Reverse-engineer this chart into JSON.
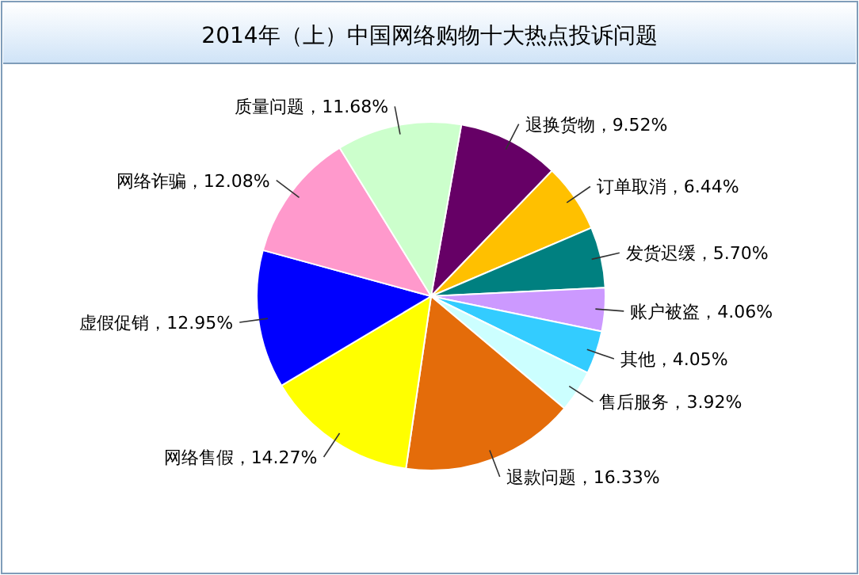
{
  "chart_data": {
    "type": "pie",
    "title": "2014年（上）中国网络购物十大热点投诉问题",
    "categories": [
      "退换货物",
      "订单取消",
      "发货迟缓",
      "账户被盗",
      "其他",
      "售后服务",
      "退款问题",
      "网络售假",
      "虚假促销",
      "网络诈骗",
      "质量问题"
    ],
    "values": [
      9.52,
      6.44,
      5.7,
      4.06,
      4.05,
      3.92,
      16.33,
      14.27,
      12.95,
      12.08,
      11.68
    ],
    "value_labels": [
      "9.52%",
      "6.44%",
      "5.70%",
      "4.06%",
      "4.05%",
      "3.92%",
      "16.33%",
      "14.27%",
      "12.95%",
      "12.08%",
      "11.68%"
    ],
    "colors": [
      "#660066",
      "#ffc000",
      "#008080",
      "#cc99ff",
      "#33ccff",
      "#ccffff",
      "#e46c0a",
      "#ffff00",
      "#0000ff",
      "#ff99cc",
      "#ccffcc"
    ]
  }
}
